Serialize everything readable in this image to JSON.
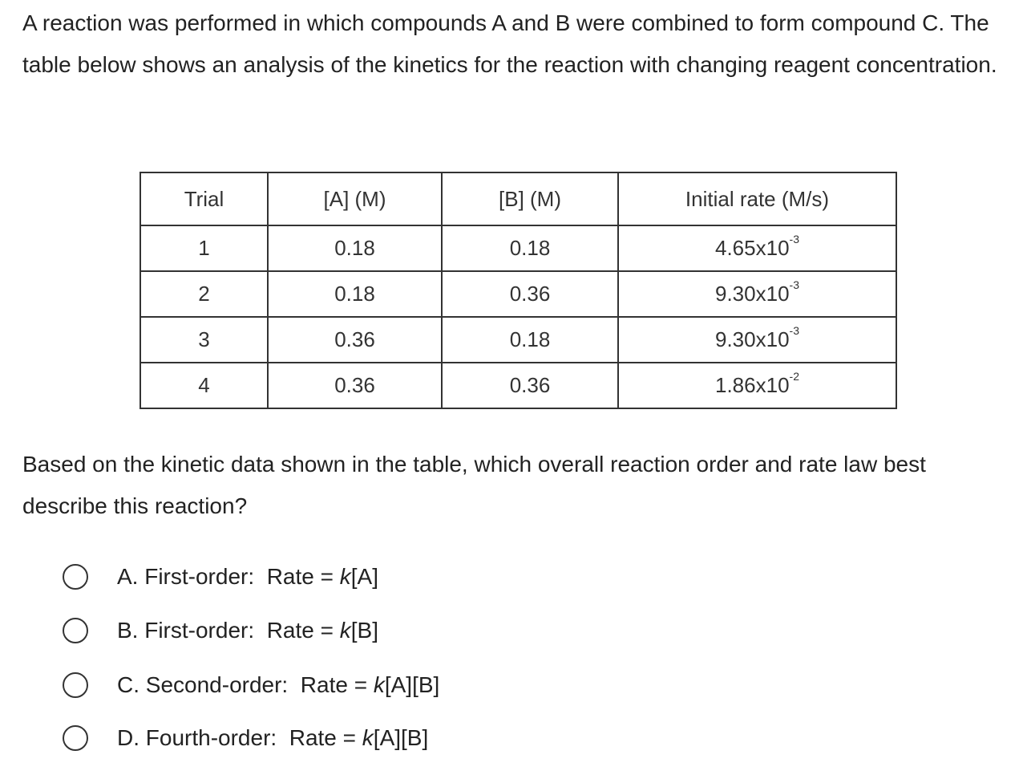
{
  "intro": "A reaction was performed in which compounds A and B were combined to form compound C.  The table below shows an analysis of the kinetics for the reaction with changing reagent concentration.",
  "table": {
    "headers": [
      "Trial",
      "[A] (M)",
      "[B] (M)",
      "Initial rate (M/s)"
    ],
    "rows": [
      {
        "trial": "1",
        "a": "0.18",
        "b": "0.18",
        "rate_base": "4.65x10",
        "rate_exp": "-3"
      },
      {
        "trial": "2",
        "a": "0.18",
        "b": "0.36",
        "rate_base": "9.30x10",
        "rate_exp": "-3"
      },
      {
        "trial": "3",
        "a": "0.36",
        "b": "0.18",
        "rate_base": "9.30x10",
        "rate_exp": "-3"
      },
      {
        "trial": "4",
        "a": "0.36",
        "b": "0.36",
        "rate_base": "1.86x10",
        "rate_exp": "-2"
      }
    ]
  },
  "question": "Based on the kinetic data shown in the table, which overall reaction order and rate law best describe this reaction?",
  "options": [
    {
      "prefix": "A. First-order:  Rate = ",
      "k": "k",
      "suffix": "[A]"
    },
    {
      "prefix": "B. First-order:  Rate = ",
      "k": "k",
      "suffix": "[B]"
    },
    {
      "prefix": "C. Second-order:  Rate = ",
      "k": "k",
      "suffix": "[A][B]"
    },
    {
      "prefix": "D. Fourth-order:  Rate = ",
      "k": "k",
      "suffix": "[A][B]"
    }
  ]
}
